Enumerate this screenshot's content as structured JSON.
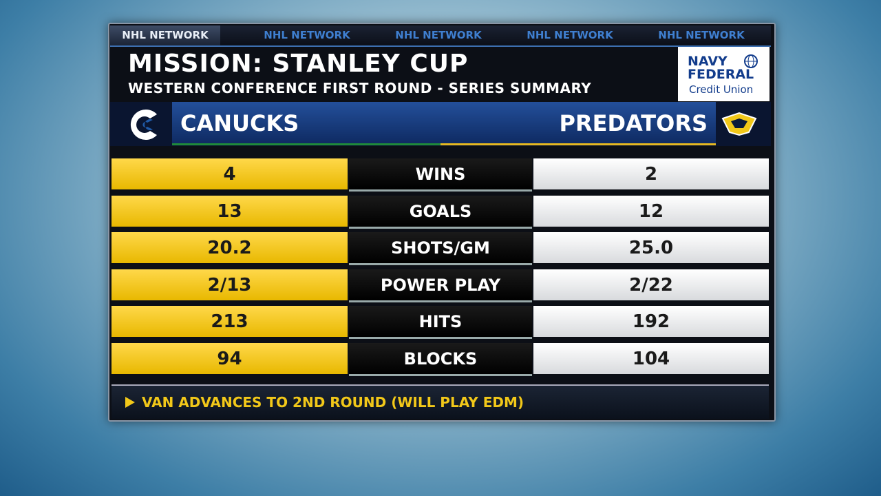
{
  "header": {
    "tabs": [
      "NHL NETWORK",
      "NHL NETWORK",
      "NHL NETWORK",
      "NHL NETWORK",
      "NHL NETWORK"
    ],
    "title": "MISSION: STANLEY CUP",
    "subtitle": "WESTERN CONFERENCE FIRST ROUND - SERIES SUMMARY",
    "sponsor": [
      "NAVY",
      "FEDERAL",
      "Credit Union"
    ]
  },
  "teams": [
    "CANUCKS",
    "PREDATORS"
  ],
  "table": {
    "rows": [
      [
        "4",
        "WINS",
        "2"
      ],
      [
        "13",
        "GOALS",
        "12"
      ],
      [
        "20.2",
        "SHOTS/GM",
        "25.0"
      ],
      [
        "2/13",
        "POWER PLAY",
        "2/22"
      ],
      [
        "213",
        "HITS",
        "192"
      ],
      [
        "94",
        "BLOCKS",
        "104"
      ]
    ]
  },
  "footer": "VAN ADVANCES TO 2ND ROUND (WILL PLAY EDM)"
}
